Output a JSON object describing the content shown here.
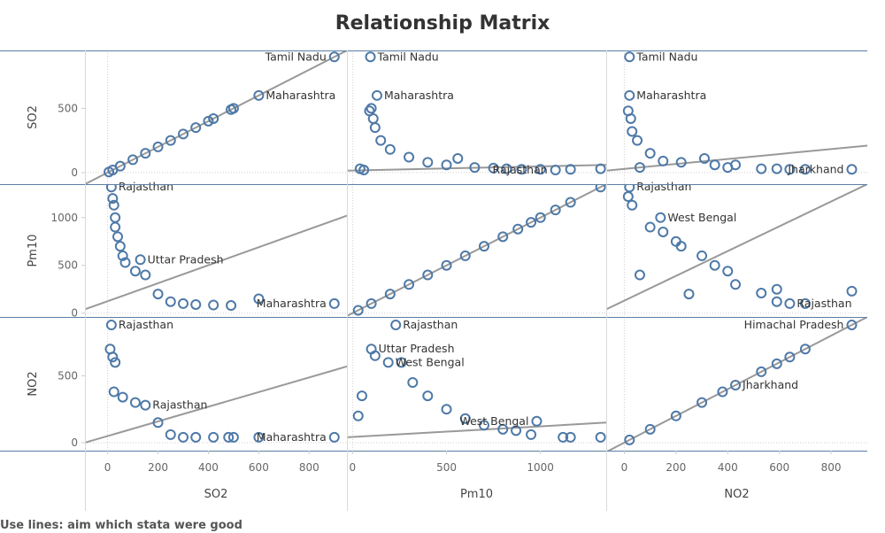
{
  "chart_data": {
    "type": "scatter",
    "title": "Relationship Matrix",
    "variables": [
      "SO2",
      "Pm10",
      "NO2"
    ],
    "ticks": {
      "SO2": [
        0,
        500
      ],
      "Pm10": [
        0,
        500,
        1000
      ],
      "NO2": [
        0,
        500
      ]
    },
    "x_ticks": {
      "SO2": [
        0,
        200,
        400,
        600,
        800
      ],
      "Pm10": [
        0,
        500,
        1000
      ],
      "NO2": [
        0,
        200,
        400,
        600,
        800
      ]
    },
    "ranges": {
      "SO2": [
        -90,
        950
      ],
      "Pm10": [
        -40,
        1350
      ],
      "NO2": [
        -60,
        940
      ]
    },
    "x_ranges": {
      "SO2": [
        -90,
        950
      ],
      "Pm10": [
        -30,
        1350
      ],
      "NO2": [
        -70,
        940
      ]
    },
    "marker_color": "#4e79a7",
    "trend_color": "#999999",
    "panels": [
      {
        "row": "SO2",
        "col": "SO2",
        "trend": [
          [
            -90,
            -90
          ],
          [
            950,
            950
          ]
        ],
        "points": [
          [
            900,
            900
          ],
          [
            600,
            600
          ],
          [
            500,
            500
          ],
          [
            490,
            490
          ],
          [
            420,
            420
          ],
          [
            400,
            400
          ],
          [
            350,
            350
          ],
          [
            300,
            300
          ],
          [
            250,
            250
          ],
          [
            200,
            200
          ],
          [
            150,
            150
          ],
          [
            100,
            100
          ],
          [
            50,
            50
          ],
          [
            20,
            20
          ],
          [
            5,
            5
          ]
        ],
        "labels": [
          {
            "text": "Tamil Nadu",
            "x": 900,
            "y": 900
          },
          {
            "text": "Maharashtra",
            "x": 600,
            "y": 600
          }
        ]
      },
      {
        "row": "SO2",
        "col": "Pm10",
        "trend": [
          [
            -30,
            15
          ],
          [
            1350,
            60
          ]
        ],
        "points": [
          [
            95,
            900
          ],
          [
            130,
            600
          ],
          [
            100,
            500
          ],
          [
            90,
            480
          ],
          [
            110,
            420
          ],
          [
            120,
            350
          ],
          [
            150,
            250
          ],
          [
            200,
            180
          ],
          [
            300,
            120
          ],
          [
            400,
            80
          ],
          [
            500,
            60
          ],
          [
            560,
            110
          ],
          [
            650,
            40
          ],
          [
            750,
            35
          ],
          [
            820,
            30
          ],
          [
            900,
            25
          ],
          [
            1000,
            25
          ],
          [
            1080,
            20
          ],
          [
            1160,
            25
          ],
          [
            1320,
            30
          ],
          [
            60,
            20
          ],
          [
            40,
            30
          ]
        ],
        "labels": [
          {
            "text": "Tamil Nadu",
            "x": 95,
            "y": 900
          },
          {
            "text": "Maharashtra",
            "x": 130,
            "y": 600
          },
          {
            "text": "Rajasthan",
            "x": 1080,
            "y": 20
          }
        ]
      },
      {
        "row": "SO2",
        "col": "NO2",
        "trend": [
          [
            -70,
            15
          ],
          [
            940,
            210
          ]
        ],
        "points": [
          [
            20,
            900
          ],
          [
            20,
            600
          ],
          [
            15,
            480
          ],
          [
            25,
            420
          ],
          [
            30,
            320
          ],
          [
            50,
            250
          ],
          [
            100,
            150
          ],
          [
            150,
            90
          ],
          [
            220,
            80
          ],
          [
            310,
            110
          ],
          [
            350,
            60
          ],
          [
            400,
            40
          ],
          [
            430,
            60
          ],
          [
            530,
            30
          ],
          [
            590,
            30
          ],
          [
            640,
            25
          ],
          [
            700,
            25
          ],
          [
            880,
            25
          ],
          [
            60,
            40
          ]
        ],
        "labels": [
          {
            "text": "Tamil Nadu",
            "x": 20,
            "y": 900
          },
          {
            "text": "Maharashtra",
            "x": 20,
            "y": 600
          },
          {
            "text": "Jharkhand",
            "x": 880,
            "y": 25
          }
        ]
      },
      {
        "row": "Pm10",
        "col": "SO2",
        "trend": [
          [
            -90,
            40
          ],
          [
            950,
            1020
          ]
        ],
        "points": [
          [
            15,
            1320
          ],
          [
            20,
            1200
          ],
          [
            25,
            1130
          ],
          [
            30,
            1000
          ],
          [
            30,
            900
          ],
          [
            40,
            800
          ],
          [
            50,
            700
          ],
          [
            60,
            600
          ],
          [
            70,
            530
          ],
          [
            110,
            440
          ],
          [
            130,
            560
          ],
          [
            150,
            400
          ],
          [
            200,
            200
          ],
          [
            250,
            120
          ],
          [
            300,
            100
          ],
          [
            350,
            90
          ],
          [
            420,
            85
          ],
          [
            490,
            80
          ],
          [
            600,
            150
          ],
          [
            900,
            100
          ]
        ],
        "labels": [
          {
            "text": "Rajasthan",
            "x": 15,
            "y": 1320
          },
          {
            "text": "Uttar Pradesh",
            "x": 130,
            "y": 560
          },
          {
            "text": "Maharashtra",
            "x": 900,
            "y": 100
          }
        ]
      },
      {
        "row": "Pm10",
        "col": "Pm10",
        "trend": [
          [
            -30,
            -30
          ],
          [
            1350,
            1350
          ]
        ],
        "points": [
          [
            1320,
            1320
          ],
          [
            1160,
            1160
          ],
          [
            1080,
            1080
          ],
          [
            1000,
            1000
          ],
          [
            950,
            950
          ],
          [
            880,
            880
          ],
          [
            800,
            800
          ],
          [
            700,
            700
          ],
          [
            600,
            600
          ],
          [
            500,
            500
          ],
          [
            400,
            400
          ],
          [
            300,
            300
          ],
          [
            200,
            200
          ],
          [
            100,
            100
          ],
          [
            30,
            30
          ]
        ],
        "labels": []
      },
      {
        "row": "Pm10",
        "col": "NO2",
        "trend": [
          [
            -70,
            40
          ],
          [
            940,
            1350
          ]
        ],
        "points": [
          [
            20,
            1320
          ],
          [
            15,
            1220
          ],
          [
            30,
            1130
          ],
          [
            140,
            1000
          ],
          [
            100,
            900
          ],
          [
            150,
            850
          ],
          [
            200,
            750
          ],
          [
            220,
            700
          ],
          [
            300,
            600
          ],
          [
            350,
            500
          ],
          [
            400,
            440
          ],
          [
            430,
            300
          ],
          [
            530,
            210
          ],
          [
            590,
            250
          ],
          [
            590,
            120
          ],
          [
            640,
            100
          ],
          [
            700,
            100
          ],
          [
            880,
            230
          ],
          [
            60,
            400
          ],
          [
            250,
            200
          ]
        ],
        "labels": [
          {
            "text": "Rajasthan",
            "x": 20,
            "y": 1320
          },
          {
            "text": "West Bengal",
            "x": 140,
            "y": 1000
          },
          {
            "text": "Rajasthan",
            "x": 640,
            "y": 100
          }
        ]
      },
      {
        "row": "NO2",
        "col": "SO2",
        "trend": [
          [
            -90,
            0
          ],
          [
            950,
            570
          ]
        ],
        "points": [
          [
            15,
            880
          ],
          [
            10,
            700
          ],
          [
            20,
            640
          ],
          [
            30,
            600
          ],
          [
            25,
            380
          ],
          [
            60,
            340
          ],
          [
            110,
            300
          ],
          [
            150,
            280
          ],
          [
            200,
            150
          ],
          [
            250,
            60
          ],
          [
            300,
            40
          ],
          [
            350,
            40
          ],
          [
            420,
            40
          ],
          [
            480,
            40
          ],
          [
            500,
            40
          ],
          [
            600,
            40
          ],
          [
            900,
            40
          ]
        ],
        "labels": [
          {
            "text": "Rajasthan",
            "x": 15,
            "y": 880
          },
          {
            "text": "Rajasthan",
            "x": 150,
            "y": 280
          },
          {
            "text": "Maharashtra",
            "x": 900,
            "y": 40
          }
        ]
      },
      {
        "row": "NO2",
        "col": "Pm10",
        "trend": [
          [
            -30,
            40
          ],
          [
            1350,
            150
          ]
        ],
        "points": [
          [
            230,
            880
          ],
          [
            100,
            700
          ],
          [
            120,
            650
          ],
          [
            190,
            600
          ],
          [
            260,
            600
          ],
          [
            320,
            450
          ],
          [
            400,
            350
          ],
          [
            500,
            250
          ],
          [
            600,
            180
          ],
          [
            700,
            130
          ],
          [
            800,
            100
          ],
          [
            870,
            90
          ],
          [
            950,
            60
          ],
          [
            980,
            160
          ],
          [
            1120,
            40
          ],
          [
            1160,
            40
          ],
          [
            1320,
            40
          ],
          [
            50,
            350
          ],
          [
            30,
            200
          ]
        ],
        "labels": [
          {
            "text": "Rajasthan",
            "x": 230,
            "y": 880
          },
          {
            "text": "Uttar Pradesh",
            "x": 100,
            "y": 700
          },
          {
            "text": "West Bengal",
            "x": 190,
            "y": 600
          },
          {
            "text": "West Bengal",
            "x": 980,
            "y": 160
          }
        ]
      },
      {
        "row": "NO2",
        "col": "NO2",
        "trend": [
          [
            -70,
            -70
          ],
          [
            940,
            940
          ]
        ],
        "points": [
          [
            880,
            880
          ],
          [
            700,
            700
          ],
          [
            640,
            640
          ],
          [
            590,
            590
          ],
          [
            530,
            530
          ],
          [
            430,
            430
          ],
          [
            380,
            380
          ],
          [
            300,
            300
          ],
          [
            200,
            200
          ],
          [
            100,
            100
          ],
          [
            20,
            20
          ]
        ],
        "labels": [
          {
            "text": "Himachal Pradesh",
            "x": 880,
            "y": 880
          },
          {
            "text": "Jharkhand",
            "x": 430,
            "y": 430
          }
        ]
      }
    ]
  },
  "footer": {
    "caption": "Use lines: aim which stata were good"
  }
}
